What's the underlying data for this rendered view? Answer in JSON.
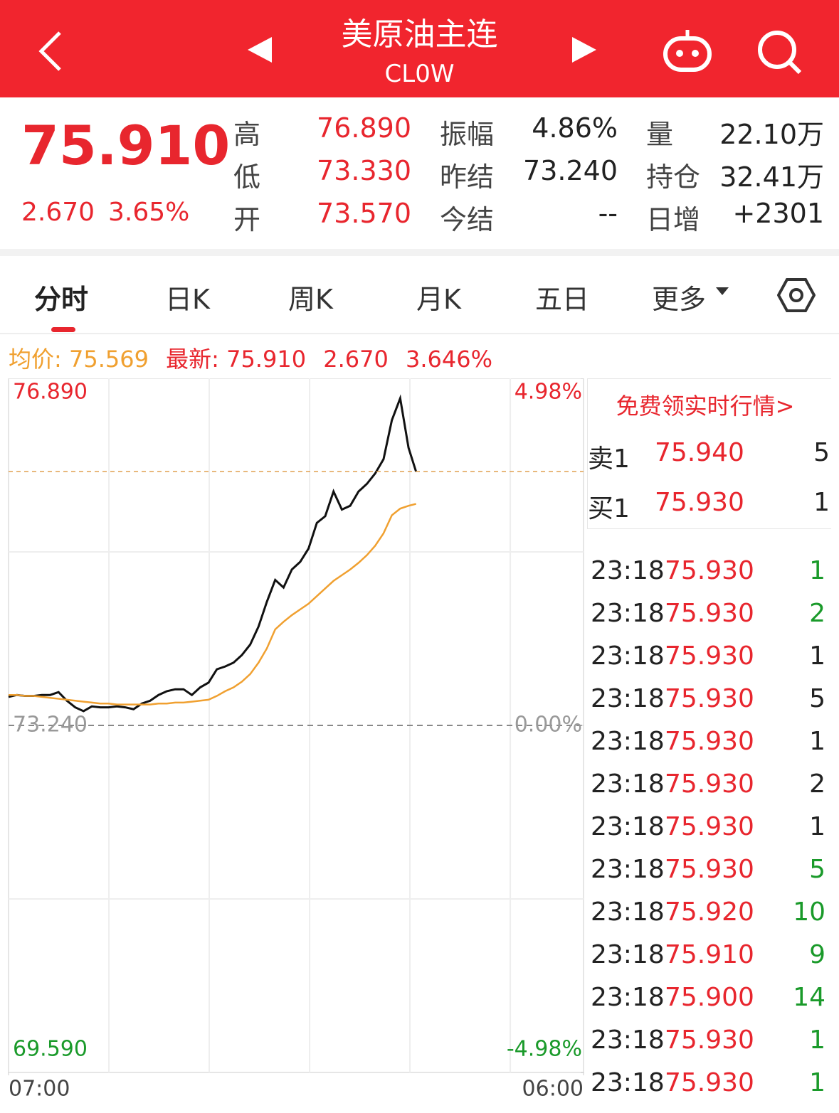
{
  "header": {
    "title": "美原油主连",
    "code": "CL0W"
  },
  "quote": {
    "price": "75.910",
    "change": "2.670",
    "change_pct": "3.65%",
    "stats": [
      {
        "label": "高",
        "value": "76.890"
      },
      {
        "label": "低",
        "value": "73.330"
      },
      {
        "label": "开",
        "value": "73.570"
      },
      {
        "label": "振幅",
        "value": "4.86%"
      },
      {
        "label": "昨结",
        "value": "73.240"
      },
      {
        "label": "今结",
        "value": "--"
      },
      {
        "label": "量",
        "value": "22.10万"
      },
      {
        "label": "持仓",
        "value": "32.41万"
      },
      {
        "label": "日增",
        "value": "+2301"
      }
    ]
  },
  "tabs": [
    "分时",
    "日K",
    "周K",
    "月K",
    "五日",
    "更多"
  ],
  "legend": {
    "avg_label": "均价:",
    "avg": "75.569",
    "latest_label": "最新:",
    "latest": "75.910",
    "change": "2.670",
    "change_pct": "3.646%"
  },
  "chart_data": {
    "type": "line",
    "x": [
      "07:00",
      "07:20",
      "07:40",
      "08:00",
      "08:20",
      "08:40",
      "09:00",
      "09:20",
      "09:40",
      "10:00",
      "10:20",
      "10:40",
      "11:00",
      "11:20",
      "11:40",
      "12:00",
      "12:20",
      "12:40",
      "13:00",
      "13:20",
      "13:40",
      "14:00",
      "14:20",
      "14:40",
      "15:00",
      "15:20",
      "15:40",
      "16:00",
      "16:20",
      "16:40",
      "17:00",
      "17:20",
      "17:40",
      "18:00",
      "18:20",
      "18:40",
      "19:00",
      "19:20",
      "19:40",
      "20:00",
      "20:20",
      "20:40",
      "21:00",
      "21:20",
      "21:40",
      "22:00",
      "22:20",
      "22:40",
      "23:00",
      "23:18"
    ],
    "xlim": [
      "07:00",
      "06:00"
    ],
    "xticks": [
      "07:00",
      "06:00"
    ],
    "series": [
      {
        "color": "#111111",
        "values": [
          73.54,
          73.56,
          73.55,
          73.55,
          73.56,
          73.56,
          73.59,
          73.5,
          73.43,
          73.39,
          73.44,
          73.43,
          73.43,
          73.44,
          73.43,
          73.41,
          73.47,
          73.5,
          73.56,
          73.6,
          73.62,
          73.62,
          73.56,
          73.64,
          73.69,
          73.83,
          73.86,
          73.9,
          73.98,
          74.09,
          74.28,
          74.54,
          74.77,
          74.69,
          74.88,
          74.96,
          75.1,
          75.37,
          75.44,
          75.7,
          75.51,
          75.55,
          75.7,
          75.78,
          75.89,
          76.04,
          76.45,
          76.68,
          76.16,
          75.91
        ]
      },
      {
        "color": "#f0a030",
        "values": [
          73.56,
          73.56,
          73.55,
          73.55,
          73.54,
          73.53,
          73.52,
          73.51,
          73.5,
          73.49,
          73.48,
          73.47,
          73.47,
          73.46,
          73.46,
          73.46,
          73.46,
          73.46,
          73.47,
          73.47,
          73.48,
          73.48,
          73.49,
          73.5,
          73.51,
          73.55,
          73.6,
          73.64,
          73.7,
          73.78,
          73.9,
          74.05,
          74.25,
          74.33,
          74.4,
          74.46,
          74.52,
          74.6,
          74.68,
          74.76,
          74.82,
          74.88,
          74.95,
          75.03,
          75.13,
          75.26,
          75.45,
          75.52,
          75.55,
          75.57
        ]
      }
    ],
    "ylim": [
      69.59,
      76.89
    ],
    "yticks": [
      {
        "value": 76.89,
        "label": "76.890"
      },
      {
        "value": 73.24,
        "label": "73.240"
      },
      {
        "value": 69.59,
        "label": "69.590"
      }
    ],
    "y2lim": [
      -4.98,
      4.98
    ],
    "y2ticks": [
      {
        "value": 4.98,
        "label": "4.98%"
      },
      {
        "value": 0,
        "label": "0.00%"
      },
      {
        "value": -4.98,
        "label": "-4.98%"
      }
    ]
  },
  "order_book": {
    "promo": "免费领实时行情>",
    "levels": [
      {
        "label": "卖1",
        "price": "75.940",
        "volume": "5"
      },
      {
        "label": "买1",
        "price": "75.930",
        "volume": "1"
      }
    ]
  },
  "trades": [
    {
      "time": "23:18",
      "price": "75.930",
      "volume": "1",
      "color": "#1a9a2a"
    },
    {
      "time": "23:18",
      "price": "75.930",
      "volume": "2",
      "color": "#1a9a2a"
    },
    {
      "time": "23:18",
      "price": "75.930",
      "volume": "1",
      "color": "#222222"
    },
    {
      "time": "23:18",
      "price": "75.930",
      "volume": "5",
      "color": "#222222"
    },
    {
      "time": "23:18",
      "price": "75.930",
      "volume": "1",
      "color": "#222222"
    },
    {
      "time": "23:18",
      "price": "75.930",
      "volume": "2",
      "color": "#222222"
    },
    {
      "time": "23:18",
      "price": "75.930",
      "volume": "1",
      "color": "#222222"
    },
    {
      "time": "23:18",
      "price": "75.930",
      "volume": "5",
      "color": "#1a9a2a"
    },
    {
      "time": "23:18",
      "price": "75.920",
      "volume": "10",
      "color": "#1a9a2a"
    },
    {
      "time": "23:18",
      "price": "75.910",
      "volume": "9",
      "color": "#1a9a2a"
    },
    {
      "time": "23:18",
      "price": "75.900",
      "volume": "14",
      "color": "#1a9a2a"
    },
    {
      "time": "23:18",
      "price": "75.930",
      "volume": "1",
      "color": "#1a9a2a"
    },
    {
      "time": "23:18",
      "price": "75.930",
      "volume": "1",
      "color": "#1a9a2a"
    }
  ]
}
